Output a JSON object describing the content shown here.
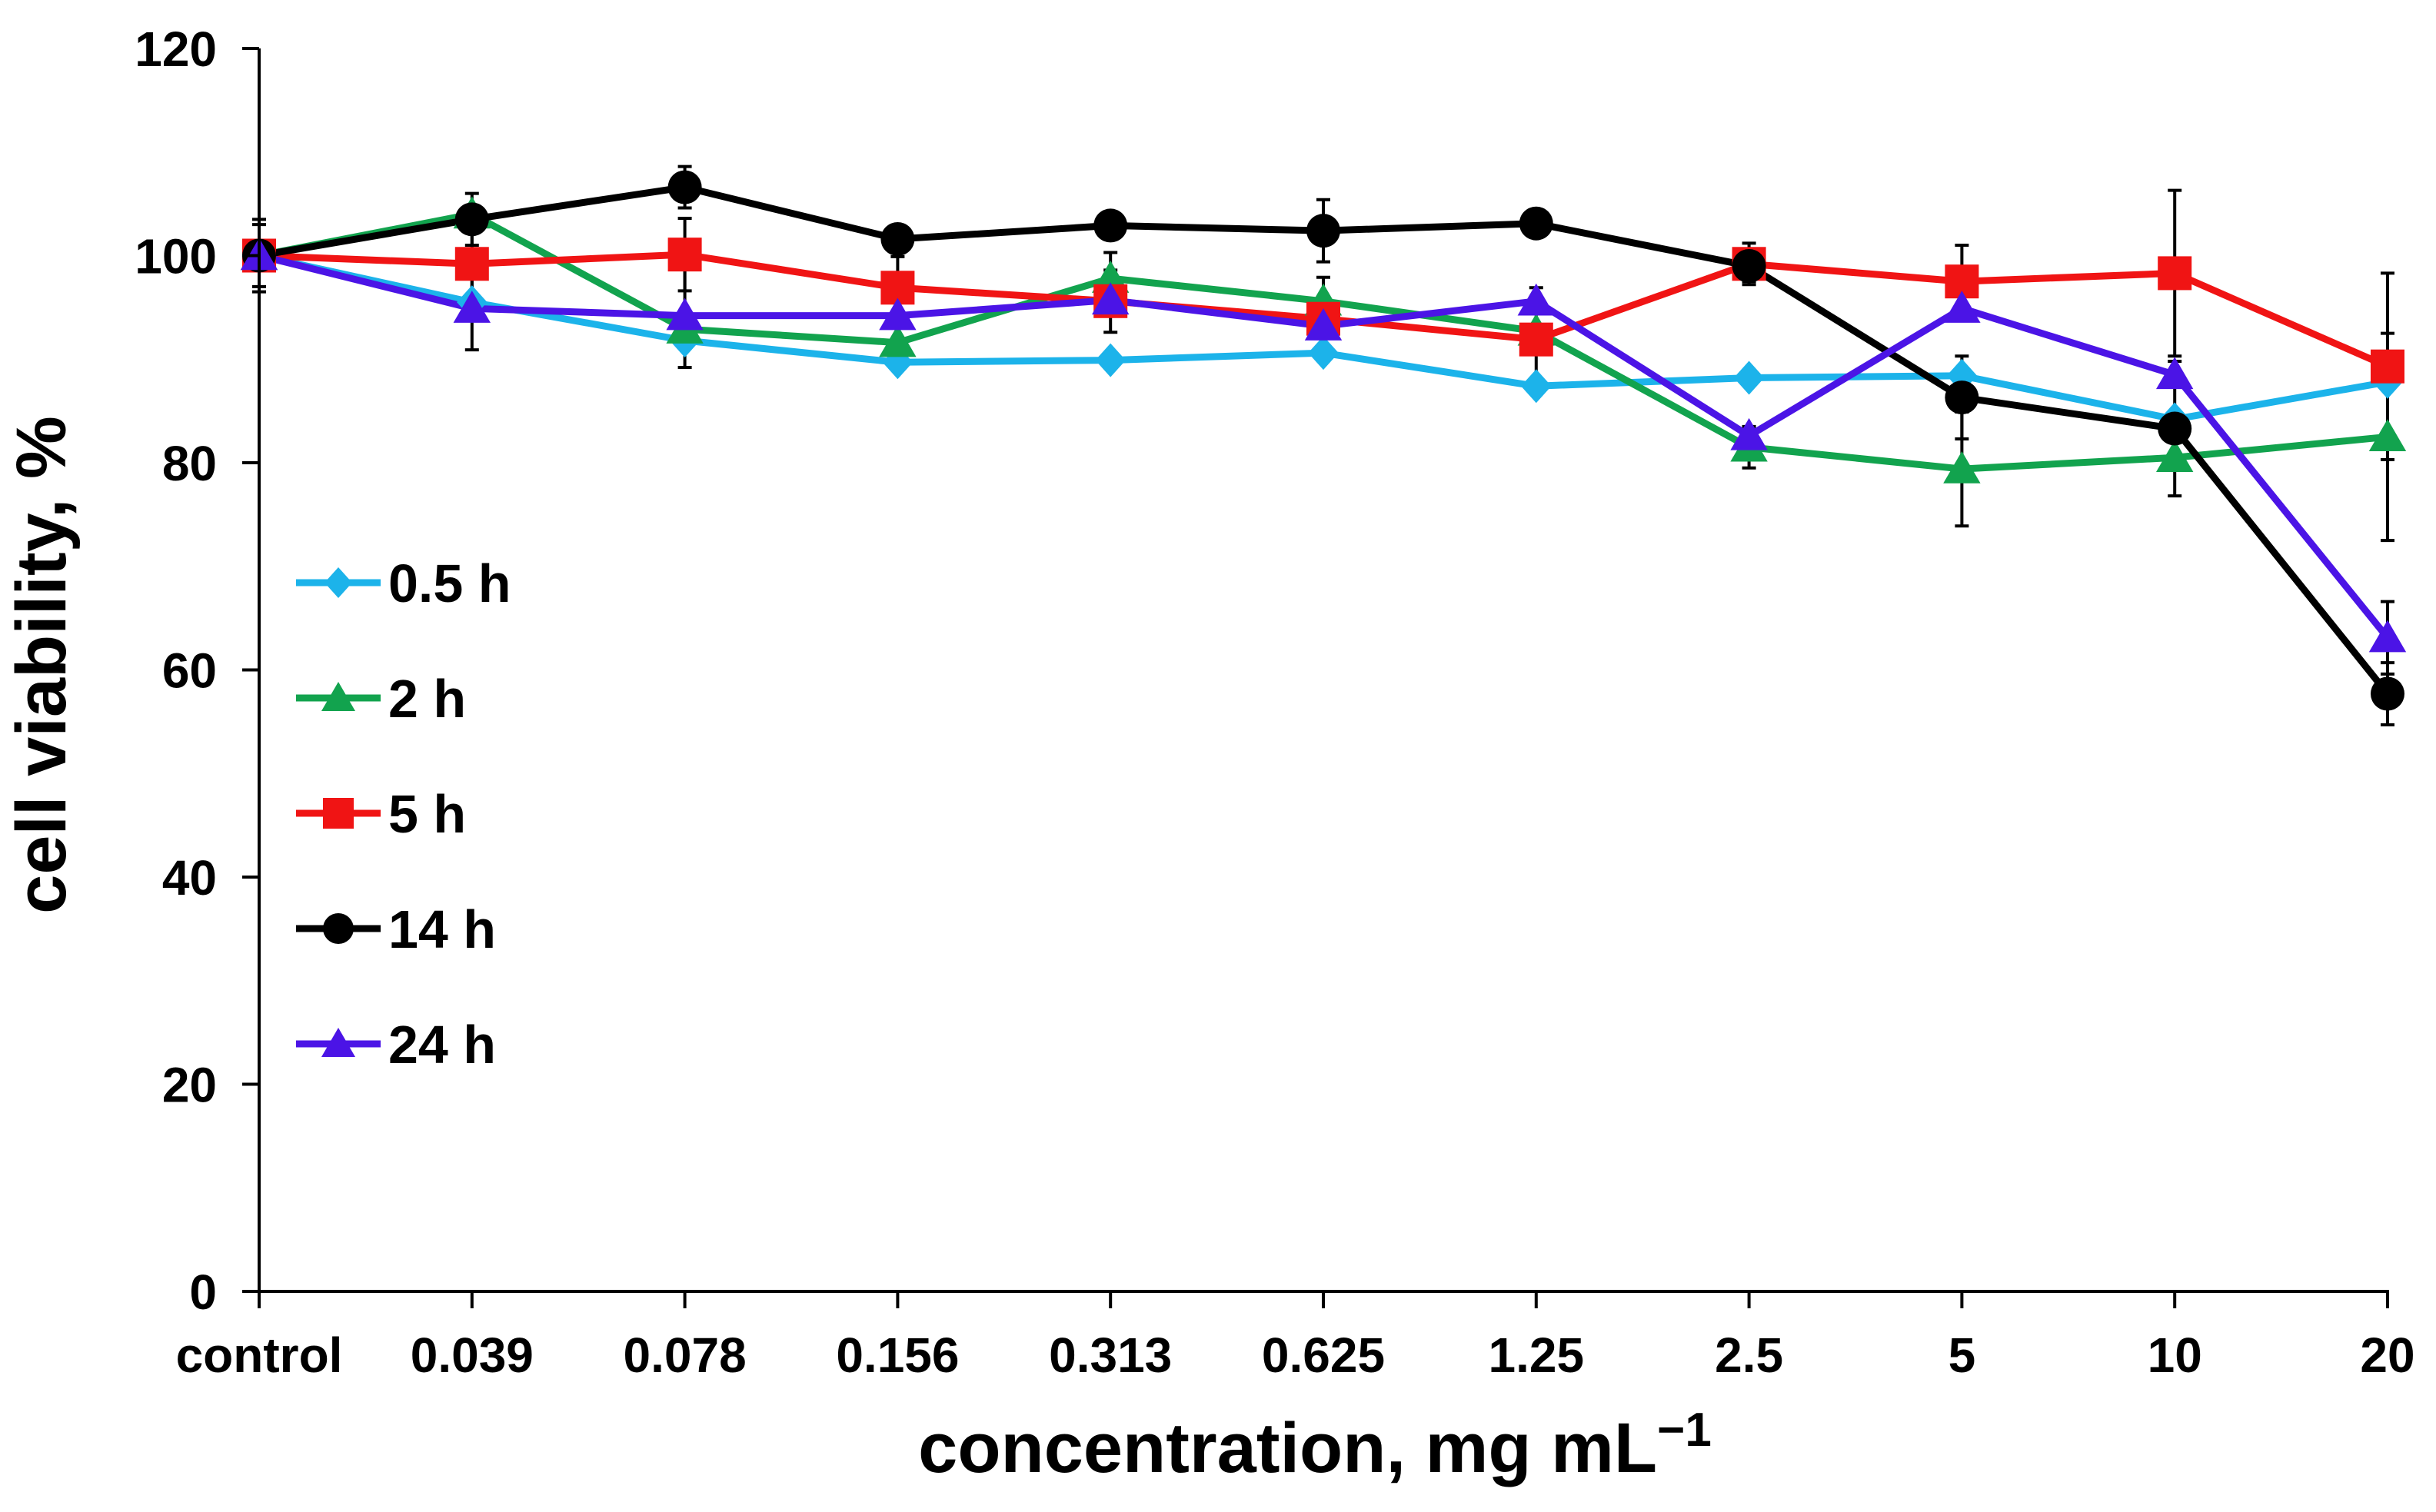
{
  "chart_data": {
    "type": "line",
    "title": "",
    "xlabel": "concentration, mg mL",
    "xlabel_sup": "−1",
    "ylabel": "cell viability, %",
    "ylim": [
      0,
      120
    ],
    "yticks": [
      "0",
      "20",
      "40",
      "60",
      "80",
      "100",
      "120"
    ],
    "ytick_values": [
      0,
      20,
      40,
      60,
      80,
      100,
      120
    ],
    "grid": false,
    "legend_position": "left-center",
    "categories": [
      "control",
      "0.039",
      "0.078",
      "0.156",
      "0.313",
      "0.625",
      "1.25",
      "2.5",
      "5",
      "10",
      "20"
    ],
    "series": [
      {
        "name": "0.5 h",
        "color": "#1cb3ea",
        "marker": "diamond",
        "values": [
          100,
          95.5,
          91.8,
          89.7,
          89.9,
          90.6,
          87.4,
          88.2,
          88.4,
          84.2,
          87.8
        ],
        "errors": [
          0,
          0,
          0,
          0,
          0,
          0,
          0,
          0,
          0,
          0,
          0
        ]
      },
      {
        "name": "2 h",
        "color": "#12a34e",
        "marker": "triangle",
        "values": [
          100,
          104,
          92.9,
          91.6,
          97.8,
          95.6,
          92.7,
          81.5,
          79.4,
          80.5,
          82.5
        ],
        "errors": [
          0,
          0,
          0,
          0,
          2.5,
          0,
          0,
          2,
          5.5,
          0,
          10
        ]
      },
      {
        "name": "5 h",
        "color": "#f01414",
        "marker": "square",
        "values": [
          100,
          99.2,
          100.1,
          96.9,
          95.6,
          93.9,
          91.9,
          99.2,
          97.5,
          98.3,
          89.3
        ],
        "errors": [
          3.5,
          3,
          3.5,
          3,
          3,
          4,
          5,
          2,
          3.5,
          8,
          9
        ]
      },
      {
        "name": "14 h",
        "color": "#000000",
        "marker": "circle",
        "values": [
          100,
          103.5,
          106.6,
          101.6,
          102.9,
          102.4,
          103.1,
          99,
          86.3,
          83.3,
          57.7
        ],
        "errors": [
          3,
          2.5,
          2,
          0,
          1,
          3,
          1,
          1.5,
          4,
          6.5,
          3
        ]
      },
      {
        "name": "24 h",
        "color": "#4b14e6",
        "marker": "triangle",
        "values": [
          100,
          94.9,
          94.2,
          94.2,
          95.7,
          93.2,
          95.6,
          82.6,
          94.9,
          88.5,
          63.1
        ],
        "errors": [
          0,
          4,
          5,
          0,
          0,
          0,
          0,
          0,
          0,
          0,
          3.5
        ]
      }
    ]
  }
}
